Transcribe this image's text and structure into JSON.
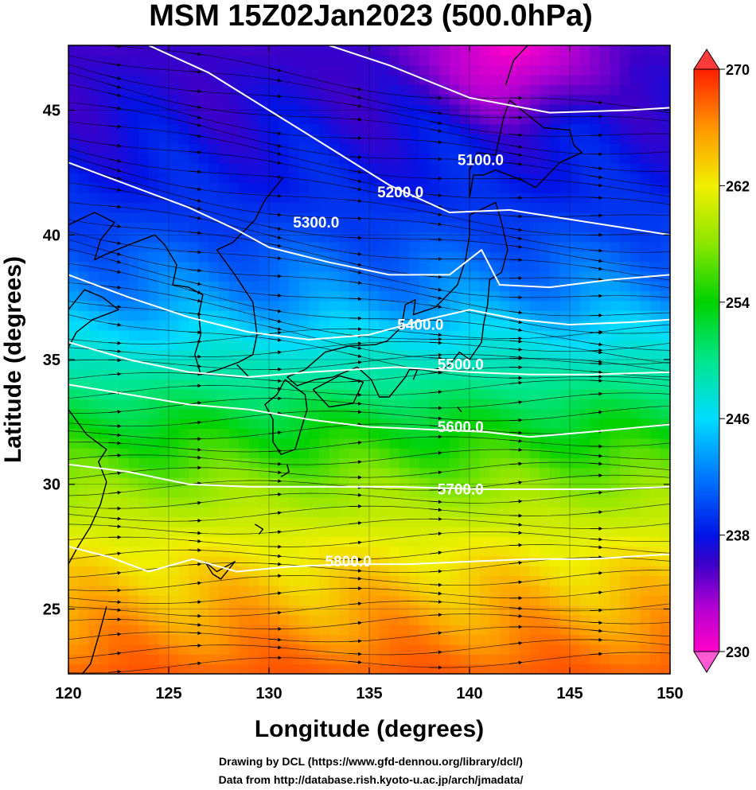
{
  "title": "MSM 15Z02Jan2023 (500.0hPa)",
  "xlabel": "Longitude (degrees)",
  "ylabel": "Latitude  (degrees)",
  "credits": [
    "Drawing by DCL (https://www.gfd-dennou.org/library/dcl/)",
    "Data from http://database.rish.kyoto-u.ac.jp/arch/jmadata/"
  ],
  "colors": {
    "contour": "#ffffff",
    "coastline": "#000000",
    "streamline": "#000000"
  },
  "chart_data": {
    "type": "map",
    "xlim": [
      120,
      150
    ],
    "ylim": [
      22.4,
      47.6
    ],
    "x_ticks": [
      "120",
      "125",
      "130",
      "135",
      "140",
      "145",
      "150"
    ],
    "x_tick_values": [
      120,
      125,
      130,
      135,
      140,
      145,
      150
    ],
    "y_ticks": [
      "25",
      "30",
      "35",
      "40",
      "45"
    ],
    "y_tick_values": [
      25,
      30,
      35,
      40,
      45
    ],
    "shading": {
      "variable": "temperature",
      "range": [
        230,
        270
      ],
      "colorbar_ticks": [
        "270",
        "262",
        "254",
        "246",
        "238",
        "230"
      ],
      "colorbar_tick_values": [
        270,
        262,
        254,
        246,
        238,
        230
      ],
      "stops": [
        {
          "v": 230,
          "c": "#ff00c8"
        },
        {
          "v": 233,
          "c": "#b400d2"
        },
        {
          "v": 236,
          "c": "#3c00c8"
        },
        {
          "v": 238,
          "c": "#0014e6"
        },
        {
          "v": 242,
          "c": "#0078ff"
        },
        {
          "v": 246,
          "c": "#00dcff"
        },
        {
          "v": 250,
          "c": "#00e68c"
        },
        {
          "v": 254,
          "c": "#00d200"
        },
        {
          "v": 258,
          "c": "#8ce600"
        },
        {
          "v": 262,
          "c": "#f0f000"
        },
        {
          "v": 266,
          "c": "#ff9600"
        },
        {
          "v": 270,
          "c": "#ff1e00"
        }
      ],
      "temperature_by_latitude": [
        {
          "lat": 47.6,
          "t": 236
        },
        {
          "lat": 45,
          "t": 237
        },
        {
          "lat": 42,
          "t": 238.5
        },
        {
          "lat": 40,
          "t": 240
        },
        {
          "lat": 37.5,
          "t": 243
        },
        {
          "lat": 35,
          "t": 248
        },
        {
          "lat": 32.5,
          "t": 253
        },
        {
          "lat": 30,
          "t": 258
        },
        {
          "lat": 27.5,
          "t": 262
        },
        {
          "lat": 25,
          "t": 265
        },
        {
          "lat": 22.4,
          "t": 268
        }
      ],
      "cold_core": {
        "lon": 142,
        "lat": 47.6,
        "t": 230
      }
    },
    "contours": [
      {
        "label": "5100.0",
        "label_at": [
          139.4,
          42.8
        ],
        "points": [
          [
            133,
            47.6
          ],
          [
            136,
            46.8
          ],
          [
            140,
            45.5
          ],
          [
            144,
            44.9
          ],
          [
            148,
            45
          ],
          [
            150,
            45.1
          ]
        ]
      },
      {
        "label": "5200.0",
        "label_at": [
          135.4,
          41.5
        ],
        "points": [
          [
            124,
            47.6
          ],
          [
            127,
            46.5
          ],
          [
            130,
            45
          ],
          [
            133,
            43.5
          ],
          [
            136,
            42
          ],
          [
            139,
            40.9
          ],
          [
            142,
            41
          ],
          [
            146,
            40.5
          ],
          [
            150,
            40
          ]
        ]
      },
      {
        "label": "5300.0",
        "label_at": [
          131.2,
          40.3
        ],
        "points": [
          [
            120,
            42.9
          ],
          [
            123,
            42
          ],
          [
            126,
            41.1
          ],
          [
            128.4,
            40.2
          ],
          [
            130,
            39.5
          ],
          [
            133,
            38.9
          ],
          [
            136,
            38.4
          ],
          [
            139,
            38.4
          ],
          [
            140.6,
            39.4
          ],
          [
            141.5,
            38
          ],
          [
            144,
            37.9
          ],
          [
            147,
            38.2
          ],
          [
            150,
            38.4
          ]
        ]
      },
      {
        "label": "5400.0",
        "label_at": [
          136.4,
          36.2
        ],
        "points": [
          [
            120,
            38.4
          ],
          [
            123,
            37.5
          ],
          [
            126,
            36.7
          ],
          [
            129,
            36.1
          ],
          [
            132,
            35.8
          ],
          [
            135,
            36
          ],
          [
            137.3,
            36.5
          ],
          [
            140,
            37
          ],
          [
            142.5,
            36.6
          ],
          [
            145,
            36.4
          ],
          [
            148,
            36.5
          ],
          [
            150,
            36.6
          ]
        ]
      },
      {
        "label": "5500.0",
        "label_at": [
          138.4,
          34.6
        ],
        "points": [
          [
            120,
            35.7
          ],
          [
            123,
            35
          ],
          [
            126,
            34.5
          ],
          [
            129,
            34.3
          ],
          [
            132,
            34.5
          ],
          [
            136.4,
            34.7
          ],
          [
            140,
            34.5
          ],
          [
            143,
            34.4
          ],
          [
            146,
            34.4
          ],
          [
            150,
            34.5
          ]
        ]
      },
      {
        "label": "5600.0",
        "label_at": [
          138.4,
          32.1
        ],
        "points": [
          [
            120,
            34
          ],
          [
            123,
            33.6
          ],
          [
            126,
            33.2
          ],
          [
            129,
            33
          ],
          [
            132,
            32.6
          ],
          [
            135,
            32.3
          ],
          [
            140.8,
            32.1
          ],
          [
            143,
            31.9
          ],
          [
            146,
            32.1
          ],
          [
            150,
            32.4
          ]
        ]
      },
      {
        "label": "5700.0",
        "label_at": [
          138.4,
          29.6
        ],
        "points": [
          [
            120,
            30.8
          ],
          [
            123,
            30.5
          ],
          [
            126,
            30
          ],
          [
            129,
            29.9
          ],
          [
            132,
            29.9
          ],
          [
            136.4,
            29.9
          ],
          [
            140.8,
            29.8
          ],
          [
            144,
            29.8
          ],
          [
            147,
            29.8
          ],
          [
            150,
            29.9
          ]
        ]
      },
      {
        "label": "5800.0",
        "label_at": [
          132.8,
          26.7
        ],
        "points": [
          [
            120,
            27.5
          ],
          [
            122,
            27.1
          ],
          [
            124,
            26.5
          ],
          [
            126.2,
            27
          ],
          [
            128.4,
            26.5
          ],
          [
            131,
            26.7
          ],
          [
            134.2,
            26.8
          ],
          [
            137,
            26.8
          ],
          [
            140,
            26.9
          ],
          [
            143,
            27
          ],
          [
            146,
            27
          ],
          [
            150,
            27.2
          ]
        ]
      }
    ],
    "coastlines": [
      [
        [
          130.8,
          34.2
        ],
        [
          131.2,
          33.95
        ],
        [
          131.8,
          33.6
        ],
        [
          131.9,
          33
        ],
        [
          131.6,
          32.2
        ],
        [
          131.3,
          31.4
        ],
        [
          130.6,
          31.2
        ],
        [
          130.2,
          31.7
        ],
        [
          130.2,
          32.6
        ],
        [
          129.8,
          33.2
        ],
        [
          130.4,
          33.6
        ],
        [
          130.8,
          34.2
        ]
      ],
      [
        [
          130.9,
          34.3
        ],
        [
          131.8,
          34.6
        ],
        [
          132.8,
          35.3
        ],
        [
          134,
          35.55
        ],
        [
          135.3,
          35.6
        ],
        [
          135.9,
          35.75
        ],
        [
          136.6,
          36.3
        ],
        [
          136.8,
          37.2
        ],
        [
          137.3,
          37.4
        ],
        [
          137.2,
          36.8
        ],
        [
          138.3,
          37.1
        ],
        [
          139.4,
          38
        ],
        [
          139.8,
          39
        ],
        [
          140,
          40
        ],
        [
          140,
          40.8
        ],
        [
          141.3,
          41.3
        ],
        [
          141.6,
          40.5
        ],
        [
          141.9,
          39.4
        ],
        [
          141.6,
          38.5
        ],
        [
          141,
          38.2
        ],
        [
          140.9,
          37.2
        ],
        [
          140.7,
          36.4
        ],
        [
          140.6,
          35.7
        ],
        [
          140,
          35
        ],
        [
          139.5,
          35.3
        ],
        [
          138.9,
          34.7
        ],
        [
          138.2,
          34.6
        ],
        [
          137,
          34.6
        ],
        [
          136.8,
          34.3
        ],
        [
          136,
          33.5
        ],
        [
          135.5,
          33.5
        ],
        [
          135.1,
          34.2
        ],
        [
          134.4,
          34.7
        ],
        [
          133.2,
          34.3
        ],
        [
          132.3,
          34.2
        ],
        [
          131.4,
          33.95
        ],
        [
          130.9,
          34.3
        ]
      ],
      [
        [
          132.2,
          33.8
        ],
        [
          133,
          33.1
        ],
        [
          134.2,
          33.25
        ],
        [
          134.7,
          34.1
        ],
        [
          133.5,
          34.35
        ],
        [
          132.2,
          33.8
        ]
      ],
      [
        [
          140,
          41.5
        ],
        [
          140.2,
          42.4
        ],
        [
          140.7,
          42.4
        ],
        [
          141.3,
          42.6
        ],
        [
          142.6,
          42.2
        ],
        [
          143.3,
          41.9
        ],
        [
          144.5,
          42.9
        ],
        [
          145.6,
          43.3
        ],
        [
          145.2,
          43.6
        ],
        [
          145,
          44.2
        ],
        [
          143.7,
          44.3
        ],
        [
          142,
          45.4
        ],
        [
          141.7,
          44.7
        ],
        [
          141.3,
          43.2
        ],
        [
          140.4,
          43.3
        ],
        [
          140,
          42.6
        ],
        [
          140,
          41.5
        ]
      ],
      [
        [
          141.8,
          46
        ],
        [
          142.2,
          47
        ],
        [
          142.9,
          47.6
        ]
      ],
      [
        [
          130.7,
          42.3
        ],
        [
          129.8,
          41.4
        ],
        [
          129.3,
          40.6
        ],
        [
          128.2,
          39.7
        ],
        [
          127.4,
          39.4
        ],
        [
          128.3,
          38.4
        ],
        [
          129.2,
          37.3
        ],
        [
          129.4,
          36
        ],
        [
          129.2,
          35.2
        ],
        [
          128.5,
          34.9
        ],
        [
          127.5,
          34.6
        ],
        [
          126.6,
          34.4
        ],
        [
          126.3,
          35.2
        ],
        [
          126.6,
          36
        ],
        [
          126.5,
          36.8
        ],
        [
          126.7,
          37.6
        ],
        [
          126,
          37.9
        ],
        [
          125.2,
          38
        ],
        [
          125.4,
          38.8
        ],
        [
          124.8,
          39.6
        ],
        [
          124.3,
          40
        ]
      ],
      [
        [
          124.3,
          40
        ],
        [
          123,
          39.6
        ],
        [
          121.8,
          39.2
        ],
        [
          121.3,
          39
        ],
        [
          121.6,
          39.8
        ],
        [
          122.3,
          40.5
        ],
        [
          121.3,
          40.9
        ],
        [
          120,
          40.4
        ]
      ],
      [
        [
          120,
          37
        ],
        [
          120.8,
          37.8
        ],
        [
          121.7,
          37.5
        ],
        [
          122.5,
          37
        ],
        [
          121.2,
          36.6
        ],
        [
          120.4,
          36.1
        ],
        [
          120,
          35.5
        ]
      ],
      [
        [
          120,
          33
        ],
        [
          120.9,
          32
        ],
        [
          121.9,
          31.4
        ],
        [
          121.5,
          30.9
        ],
        [
          121.9,
          30.1
        ],
        [
          121.6,
          29.2
        ],
        [
          121.1,
          28.3
        ],
        [
          120.4,
          27.4
        ],
        [
          120,
          26.8
        ]
      ],
      [
        [
          121.9,
          25.1
        ],
        [
          121.5,
          23.9
        ],
        [
          121.1,
          22.8
        ],
        [
          120.7,
          22.4
        ]
      ],
      [
        [
          126.8,
          26.9
        ],
        [
          127.4,
          26.5
        ],
        [
          128.3,
          26.9
        ],
        [
          127.6,
          26.2
        ],
        [
          127.2,
          26.4
        ],
        [
          126.8,
          26.9
        ]
      ],
      [
        [
          129.3,
          28.4
        ],
        [
          129.7,
          28.2
        ],
        [
          129.5,
          28
        ]
      ],
      [
        [
          130.6,
          30.3
        ],
        [
          131,
          30.5
        ],
        [
          130.9,
          30.8
        ]
      ],
      [
        [
          128.4,
          34.8
        ],
        [
          129,
          34.3
        ]
      ],
      [
        [
          137.4,
          34.6
        ],
        [
          137.2,
          34.2
        ]
      ],
      [
        [
          139.4,
          33.1
        ],
        [
          139.6,
          32.9
        ]
      ]
    ],
    "streamlines": {
      "wind": "westerly",
      "count": 46
    }
  }
}
